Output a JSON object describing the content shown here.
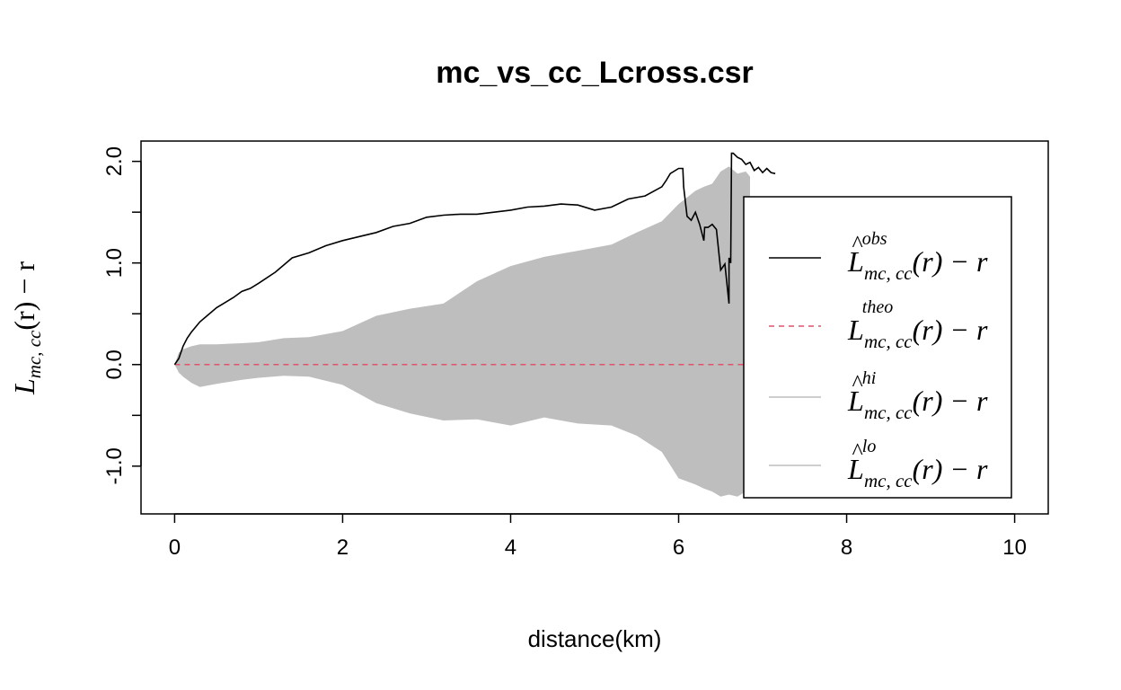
{
  "chart_data": {
    "type": "line",
    "title": "mc_vs_cc_Lcross.csr",
    "xlabel": "distance(km)",
    "ylabel": {
      "main": "L",
      "subscript": "mc, cc",
      "rest": "(r) − r"
    },
    "xlim": [
      -0.4,
      10.4
    ],
    "ylim": [
      -1.47,
      2.2
    ],
    "x_ticks": [
      0,
      2,
      4,
      6,
      8,
      10
    ],
    "x_tick_labels": [
      "0",
      "2",
      "4",
      "6",
      "8",
      "10"
    ],
    "y_ticks": [
      -1.0,
      0.0,
      1.0,
      2.0
    ],
    "y_tick_labels": [
      "-1.0",
      "0.0",
      "1.0",
      "2.0"
    ],
    "y_minor_ticks": [
      -0.5,
      0.5,
      1.5
    ],
    "grid": false,
    "legend_placement": "right",
    "series": [
      {
        "key": "obs",
        "style": "solid",
        "color": "#000000",
        "x": [
          0.0,
          0.05,
          0.1,
          0.15,
          0.2,
          0.3,
          0.4,
          0.5,
          0.6,
          0.7,
          0.8,
          0.9,
          1.0,
          1.2,
          1.4,
          1.6,
          1.8,
          2.0,
          2.2,
          2.4,
          2.6,
          2.8,
          3.0,
          3.2,
          3.4,
          3.6,
          3.8,
          4.0,
          4.2,
          4.4,
          4.6,
          4.8,
          5.0,
          5.2,
          5.4,
          5.6,
          5.8,
          5.85,
          5.9,
          6.0,
          6.05,
          6.06,
          6.1,
          6.15,
          6.2,
          6.25,
          6.3,
          6.31,
          6.35,
          6.4,
          6.45,
          6.5,
          6.55,
          6.6,
          6.6,
          6.62,
          6.63,
          6.65,
          6.7,
          6.75,
          6.8,
          6.85,
          6.9,
          6.95,
          7.0,
          7.05,
          7.1,
          7.15
        ],
        "y": [
          0.0,
          0.06,
          0.18,
          0.26,
          0.32,
          0.42,
          0.49,
          0.56,
          0.61,
          0.66,
          0.72,
          0.75,
          0.8,
          0.91,
          1.05,
          1.1,
          1.17,
          1.22,
          1.26,
          1.3,
          1.36,
          1.39,
          1.45,
          1.47,
          1.48,
          1.48,
          1.5,
          1.52,
          1.55,
          1.56,
          1.58,
          1.57,
          1.52,
          1.55,
          1.63,
          1.66,
          1.75,
          1.81,
          1.88,
          1.93,
          1.93,
          1.75,
          1.46,
          1.42,
          1.5,
          1.38,
          1.22,
          1.35,
          1.35,
          1.38,
          1.33,
          0.93,
          0.99,
          0.6,
          1.05,
          1.0,
          2.08,
          2.08,
          2.04,
          2.02,
          1.97,
          1.99,
          1.91,
          1.94,
          1.89,
          1.93,
          1.89,
          1.88
        ]
      },
      {
        "key": "theo",
        "style": "dashed",
        "color": "#DF536B",
        "x": [
          0.0,
          8.5
        ],
        "y": [
          0.0,
          0.0
        ]
      },
      {
        "key": "hi",
        "style": "solid",
        "color": "#BEBEBE",
        "x": [
          0.0,
          0.05,
          0.1,
          0.2,
          0.3,
          0.5,
          0.8,
          1.0,
          1.3,
          1.6,
          2.0,
          2.4,
          2.8,
          3.2,
          3.6,
          4.0,
          4.4,
          4.8,
          5.2,
          5.5,
          5.8,
          6.0,
          6.2,
          6.3,
          6.4,
          6.5,
          6.6,
          6.7,
          6.8,
          6.85
        ],
        "y": [
          0.0,
          0.12,
          0.15,
          0.18,
          0.2,
          0.2,
          0.21,
          0.22,
          0.26,
          0.27,
          0.33,
          0.48,
          0.55,
          0.6,
          0.82,
          0.97,
          1.06,
          1.12,
          1.18,
          1.3,
          1.41,
          1.58,
          1.71,
          1.75,
          1.78,
          1.9,
          1.95,
          1.88,
          1.9,
          1.85
        ]
      },
      {
        "key": "lo",
        "style": "solid",
        "color": "#BEBEBE",
        "x": [
          0.0,
          0.05,
          0.1,
          0.2,
          0.3,
          0.5,
          0.8,
          1.0,
          1.3,
          1.6,
          2.0,
          2.4,
          2.8,
          3.2,
          3.6,
          4.0,
          4.4,
          4.8,
          5.2,
          5.5,
          5.8,
          6.0,
          6.2,
          6.3,
          6.4,
          6.5,
          6.6,
          6.7,
          6.8,
          6.85
        ],
        "y": [
          0.0,
          -0.08,
          -0.12,
          -0.18,
          -0.22,
          -0.19,
          -0.15,
          -0.13,
          -0.11,
          -0.12,
          -0.2,
          -0.38,
          -0.48,
          -0.55,
          -0.54,
          -0.6,
          -0.52,
          -0.58,
          -0.6,
          -0.7,
          -0.86,
          -1.12,
          -1.18,
          -1.22,
          -1.25,
          -1.3,
          -1.28,
          -1.3,
          -1.25,
          -1.2
        ]
      }
    ],
    "legend": [
      {
        "key": "obs",
        "line_style": "solid",
        "color": "#000000",
        "hat": "^",
        "main": "L",
        "superscript": "obs",
        "subscript": "mc, cc",
        "rest": "(r) − r"
      },
      {
        "key": "theo",
        "line_style": "dashed",
        "color": "#DF536B",
        "hat": "",
        "main": "L",
        "superscript": "theo",
        "subscript": "mc, cc",
        "rest": "(r) − r"
      },
      {
        "key": "hi",
        "line_style": "solid",
        "color": "#BEBEBE",
        "hat": "^",
        "main": "L",
        "superscript": "hi",
        "subscript": "mc, cc",
        "rest": "(r) − r"
      },
      {
        "key": "lo",
        "line_style": "solid",
        "color": "#BEBEBE",
        "hat": "^",
        "main": "L",
        "superscript": "lo",
        "subscript": "mc, cc",
        "rest": "(r) − r"
      }
    ]
  }
}
